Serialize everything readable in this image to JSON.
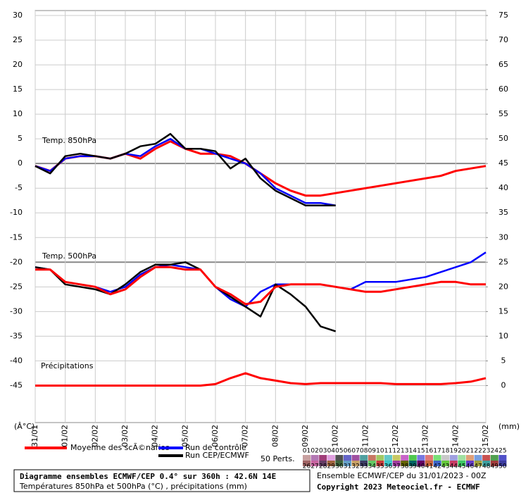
{
  "chart_data": {
    "type": "line",
    "y_unit": "(Â°C)",
    "y2_unit": "(mm)",
    "annotations": [
      "Temp. 850hPa",
      "Temp. 500hPa",
      "Précipitations"
    ],
    "title": "Diagramme ensembles ECMWF/CEP 0.4° sur 360h : 42.6N 14E",
    "subtitle": "Températures 850hPa et 500hPa (°C) , précipitations (mm)",
    "run_info": "Ensemble ECMWF/CEP du 31/01/2023 - 00Z",
    "copyright": "Copyright 2023 Meteociel.fr - ECMWF",
    "perts_label": "50 Perts.",
    "grid": true,
    "x": [
      0,
      12,
      24,
      36,
      48,
      60,
      72,
      84,
      96,
      108,
      120,
      132,
      144,
      156,
      168,
      180,
      192,
      204,
      216,
      228,
      240,
      252,
      264,
      276,
      288,
      300,
      312,
      324,
      336,
      348,
      360
    ],
    "xlim": [
      0,
      360
    ],
    "xticks": [
      {
        "value": 0,
        "label": "31/01"
      },
      {
        "value": 24,
        "label": "01/02"
      },
      {
        "value": 48,
        "label": "02/02"
      },
      {
        "value": 72,
        "label": "03/02"
      },
      {
        "value": 96,
        "label": "04/02"
      },
      {
        "value": 120,
        "label": "05/02"
      },
      {
        "value": 144,
        "label": "06/02"
      },
      {
        "value": 168,
        "label": "07/02"
      },
      {
        "value": 192,
        "label": "08/02"
      },
      {
        "value": 216,
        "label": "09/02"
      },
      {
        "value": 240,
        "label": "10/02"
      },
      {
        "value": 264,
        "label": "11/02"
      },
      {
        "value": 288,
        "label": "12/02"
      },
      {
        "value": 312,
        "label": "13/02"
      },
      {
        "value": 336,
        "label": "14/02"
      },
      {
        "value": 360,
        "label": "15/02"
      }
    ],
    "ylim": [
      -52.5,
      31
    ],
    "yticks": [
      -45,
      -40,
      -35,
      -30,
      -25,
      -20,
      -15,
      -10,
      -5,
      0,
      5,
      10,
      15,
      20,
      25,
      30
    ],
    "y2lim": [
      -7.5,
      76
    ],
    "y2ticks": [
      0,
      5,
      10,
      15,
      20,
      25,
      30,
      35,
      40,
      45,
      50,
      55,
      60,
      65,
      70,
      75
    ],
    "series": [
      {
        "name": "Moyenne des scÃ©narios",
        "color": "#ff0000",
        "width": 3,
        "values": [
          -0.5,
          -1.5,
          1,
          1.5,
          1.5,
          1,
          2,
          1,
          3,
          4.5,
          3,
          2,
          2,
          1.5,
          0,
          -2,
          -4,
          -5.5,
          -6.5,
          -6.5,
          -6,
          -5.5,
          -5,
          -4.5,
          -4,
          -3.5,
          -3,
          -2.5,
          -1.5,
          -1,
          -0.5
        ]
      },
      {
        "name": "Run de contrôle",
        "color": "#0000ff",
        "width": 2.5,
        "values": [
          -0.5,
          -1.5,
          1,
          1.5,
          1.5,
          1,
          2,
          1.5,
          3.5,
          5,
          3,
          3,
          2,
          1,
          0,
          -2,
          -5,
          -6.5,
          -8,
          -8,
          -8.5,
          null,
          null,
          null,
          null,
          null,
          null,
          null,
          null,
          null,
          null
        ]
      },
      {
        "name": "Run CEP/ECMWF",
        "color": "#000000",
        "width": 2.5,
        "values": [
          -0.5,
          -2,
          1.5,
          2,
          1.5,
          1,
          2,
          3.5,
          4,
          6,
          3,
          3,
          2.5,
          -1,
          1,
          -3,
          -5.5,
          -7,
          -8.5,
          -8.5,
          -8.5,
          null,
          null,
          null,
          null,
          null,
          null,
          null,
          null,
          null,
          null
        ]
      },
      {
        "color": "#0000ff",
        "width": 2.5,
        "values": [
          -21,
          -21.5,
          -24,
          -24.5,
          -25,
          -26,
          -25,
          -22.5,
          -21,
          -20.5,
          -21,
          -21.5,
          -25,
          -27.5,
          -29,
          -26,
          -24.5,
          -24.5,
          -24.5,
          -24.5,
          -25,
          -25.5,
          -24,
          -24,
          -24,
          -23.5,
          -23,
          -22,
          -21,
          -20,
          -18
        ]
      },
      {
        "color": "#000000",
        "width": 2.5,
        "values": [
          -21,
          -21.5,
          -24.5,
          -25,
          -25.5,
          -26.5,
          -24.5,
          -22,
          -20.5,
          -20.5,
          -20,
          -21.5,
          -25,
          -27,
          -29,
          -31,
          -24.5,
          -26.5,
          -29,
          -33,
          -34,
          null,
          null,
          null,
          null,
          null,
          null,
          null,
          null,
          null,
          null
        ]
      },
      {
        "color": "#ff0000",
        "width": 3,
        "values": [
          -21.5,
          -21.5,
          -24,
          -24.5,
          -25,
          -26.5,
          -25.5,
          -23,
          -21,
          -21,
          -21.5,
          -21.5,
          -25,
          -26.5,
          -28.5,
          -28,
          -25,
          -24.5,
          -24.5,
          -24.5,
          -25,
          -25.5,
          -26,
          -26,
          -25.5,
          -25,
          -24.5,
          -24,
          -24,
          -24.5,
          -24.5
        ]
      },
      {
        "color": "#ff0000",
        "width": 3,
        "axis": "y2",
        "values": [
          0,
          0,
          0,
          0,
          0,
          0,
          0,
          0,
          0,
          0,
          0,
          0,
          0.3,
          1.5,
          2.5,
          1.5,
          1,
          0.5,
          0.3,
          0.5,
          0.5,
          0.5,
          0.5,
          0.5,
          0.3,
          0.3,
          0.3,
          0.3,
          0.5,
          0.8,
          1.5
        ]
      }
    ],
    "perturbations": [
      {
        "name": "01",
        "color": "#c8a0a0"
      },
      {
        "name": "02",
        "color": "#b478b4"
      },
      {
        "name": "03",
        "color": "#a03c78"
      },
      {
        "name": "04",
        "color": "#e0a0e0"
      },
      {
        "name": "05",
        "color": "#505050"
      },
      {
        "name": "06",
        "color": "#6464c8"
      },
      {
        "name": "07",
        "color": "#a050a0"
      },
      {
        "name": "08",
        "color": "#50a0a0"
      },
      {
        "name": "09",
        "color": "#c87864"
      },
      {
        "name": "10",
        "color": "#a0c864"
      },
      {
        "name": "11",
        "color": "#64c8c8"
      },
      {
        "name": "12",
        "color": "#c8c864"
      },
      {
        "name": "13",
        "color": "#c864c8"
      },
      {
        "name": "14",
        "color": "#50c850"
      },
      {
        "name": "15",
        "color": "#7878e0"
      },
      {
        "name": "16",
        "color": "#e07878"
      },
      {
        "name": "17",
        "color": "#78e078"
      },
      {
        "name": "18",
        "color": "#c8c8c8"
      },
      {
        "name": "19",
        "color": "#a0a0e0"
      },
      {
        "name": "20",
        "color": "#a0e0a0"
      },
      {
        "name": "21",
        "color": "#e0a078"
      },
      {
        "name": "22",
        "color": "#78a0e0"
      },
      {
        "name": "23",
        "color": "#c85050"
      },
      {
        "name": "24",
        "color": "#50a050"
      },
      {
        "name": "25",
        "color": "#5050c8"
      },
      {
        "name": "26",
        "color": "#a06464"
      },
      {
        "name": "27",
        "color": "#c864a0"
      },
      {
        "name": "28",
        "color": "#643c64"
      },
      {
        "name": "29",
        "color": "#a0643c"
      },
      {
        "name": "30",
        "color": "#3c643c"
      },
      {
        "name": "31",
        "color": "#64a0c8"
      },
      {
        "name": "32",
        "color": "#c8a064"
      },
      {
        "name": "33",
        "color": "#3c3c64"
      },
      {
        "name": "34",
        "color": "#64c864"
      },
      {
        "name": "35",
        "color": "#c83c3c"
      },
      {
        "name": "36",
        "color": "#3cc8c8"
      },
      {
        "name": "37",
        "color": "#a03ca0"
      },
      {
        "name": "38",
        "color": "#646400"
      },
      {
        "name": "39",
        "color": "#006464"
      },
      {
        "name": "40",
        "color": "#640064"
      },
      {
        "name": "41",
        "color": "#c8643c"
      },
      {
        "name": "42",
        "color": "#3c64c8"
      },
      {
        "name": "43",
        "color": "#64c83c"
      },
      {
        "name": "44",
        "color": "#c83c64"
      },
      {
        "name": "45",
        "color": "#3cc864"
      },
      {
        "name": "46",
        "color": "#643cc8"
      },
      {
        "name": "47",
        "color": "#a0a03c"
      },
      {
        "name": "48",
        "color": "#3ca0a0"
      },
      {
        "name": "49",
        "color": "#a03c3c"
      },
      {
        "name": "50",
        "color": "#3c3ca0"
      }
    ]
  }
}
